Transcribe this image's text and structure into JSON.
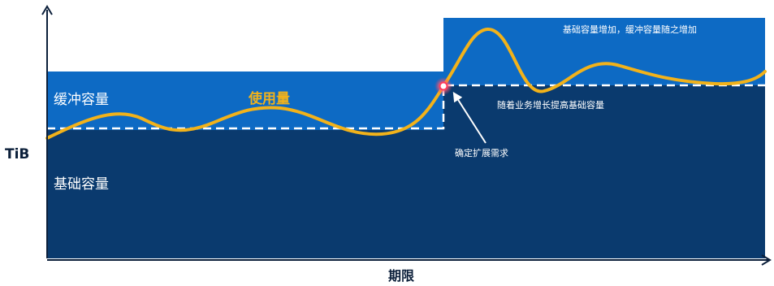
{
  "diagram": {
    "axis": {
      "y_label": "TiB",
      "x_label": "期限"
    },
    "regions": {
      "buffer_label": "缓冲容量",
      "base_label": "基础容量"
    },
    "usage_label": "使用量",
    "annotations": {
      "scale_trigger": "确定扩展需求",
      "base_growth": "随着业务增长提高基础容量",
      "buffer_growth": "基础容量增加，缓冲容量随之增加"
    },
    "colors": {
      "buffer_blue": "#0d6ac4",
      "base_navy": "#0a3a6e",
      "usage_gold": "#f2b21a",
      "axis_dark": "#0b1f3a",
      "threshold_dashed": "#ffffff"
    }
  }
}
